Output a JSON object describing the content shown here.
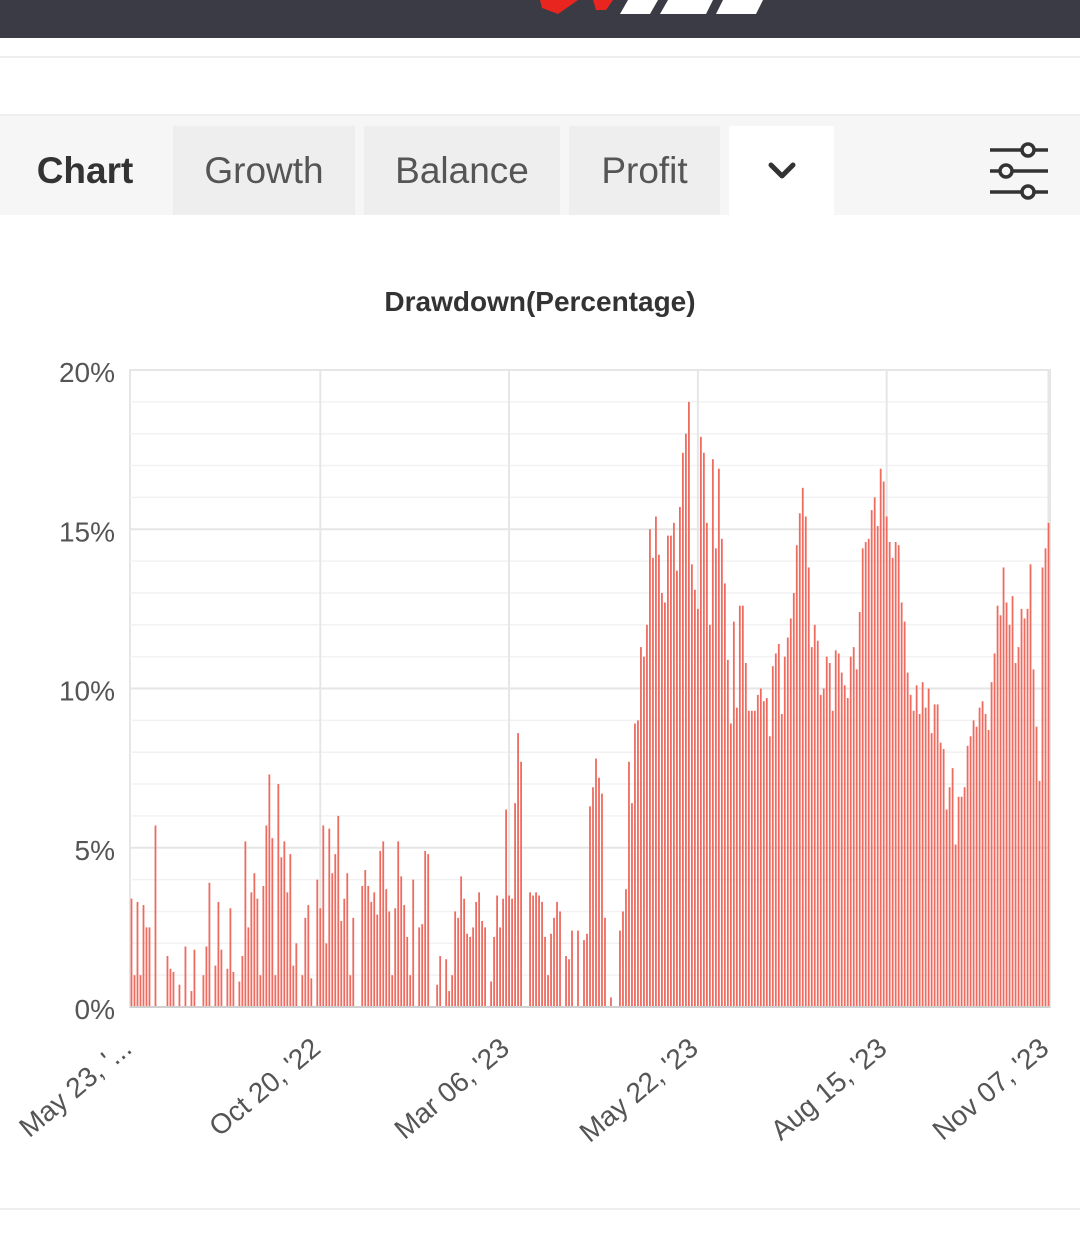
{
  "brand": {
    "color": "#3b3b46",
    "accent": "#e8251e"
  },
  "tabs": [
    {
      "label": "Chart"
    },
    {
      "label": "Growth"
    },
    {
      "label": "Balance"
    },
    {
      "label": "Profit"
    }
  ],
  "icons": {
    "more": "chevron-down-icon",
    "settings": "sliders-icon"
  },
  "chart_data": {
    "type": "bar",
    "title": "Drawdown(Percentage)",
    "ylim": [
      0,
      20
    ],
    "yticks": [
      "0%",
      "5%",
      "10%",
      "15%",
      "20%"
    ],
    "xticks": [
      "May 23, '...",
      "Oct 20, '22",
      "Mar 06, '23",
      "May 22, '23",
      "Aug 15, '23",
      "Nov 07, '23"
    ],
    "bar_color": "#ee6b60",
    "grid": true,
    "values": [
      3.4,
      1.0,
      3.3,
      1.0,
      3.2,
      2.5,
      2.5,
      0.0,
      5.7,
      0.0,
      0.0,
      0.0,
      1.6,
      1.2,
      1.1,
      0.0,
      0.7,
      0.0,
      1.9,
      0.0,
      0.5,
      1.8,
      0.0,
      0.0,
      1.0,
      1.9,
      3.9,
      0.0,
      1.3,
      3.3,
      1.8,
      0.0,
      1.2,
      3.1,
      1.1,
      0.0,
      0.8,
      1.6,
      5.2,
      2.5,
      3.6,
      4.2,
      3.4,
      1.0,
      3.8,
      5.7,
      7.3,
      5.3,
      1.0,
      7.0,
      4.7,
      5.2,
      3.6,
      4.8,
      1.3,
      2.0,
      0.0,
      1.0,
      2.8,
      3.2,
      0.9,
      0.0,
      4.0,
      3.1,
      5.7,
      2.0,
      5.6,
      4.2,
      4.8,
      6.0,
      2.7,
      3.4,
      4.2,
      1.0,
      2.8,
      0.0,
      0.0,
      3.8,
      4.3,
      3.8,
      3.3,
      3.6,
      2.9,
      4.9,
      5.2,
      3.7,
      3.0,
      1.0,
      3.1,
      5.2,
      4.1,
      3.2,
      2.2,
      1.0,
      4.0,
      0.0,
      2.5,
      2.6,
      4.9,
      4.8,
      0.0,
      0.0,
      0.7,
      1.6,
      0.0,
      1.5,
      0.5,
      1.0,
      3.0,
      2.8,
      4.1,
      3.4,
      2.3,
      2.2,
      2.5,
      3.3,
      3.6,
      2.7,
      2.5,
      0.0,
      0.8,
      2.2,
      3.5,
      2.5,
      3.4,
      6.2,
      3.5,
      3.4,
      6.4,
      8.6,
      7.7,
      0.0,
      0.0,
      3.6,
      3.5,
      3.6,
      3.5,
      3.3,
      2.2,
      1.0,
      2.3,
      2.8,
      3.3,
      3.0,
      0.0,
      1.6,
      1.5,
      2.4,
      0.0,
      2.4,
      0.0,
      2.1,
      2.3,
      6.3,
      6.9,
      7.8,
      7.2,
      6.7,
      2.8,
      0.0,
      0.3,
      0.0,
      0.0,
      2.4,
      3.0,
      3.7,
      7.7,
      6.4,
      8.9,
      9.0,
      11.3,
      11.0,
      12.0,
      15.0,
      14.1,
      15.4,
      14.2,
      13.0,
      12.7,
      14.8,
      14.8,
      15.2,
      13.7,
      15.7,
      17.4,
      18.0,
      19.0,
      13.9,
      13.1,
      12.5,
      17.9,
      17.4,
      15.2,
      12.0,
      17.2,
      14.4,
      16.9,
      14.7,
      13.3,
      10.9,
      8.9,
      12.1,
      9.4,
      12.6,
      12.6,
      10.8,
      9.3,
      9.3,
      9.3,
      9.8,
      10.0,
      9.6,
      9.7,
      8.5,
      10.7,
      11.1,
      11.4,
      9.2,
      11.0,
      11.6,
      12.2,
      13.0,
      14.5,
      15.5,
      16.3,
      15.4,
      13.8,
      11.3,
      12.0,
      11.5,
      9.8,
      10.0,
      11.0,
      10.8,
      9.3,
      11.2,
      11.1,
      10.5,
      10.1,
      9.7,
      11.0,
      11.3,
      10.6,
      12.4,
      14.4,
      14.6,
      14.7,
      15.6,
      16.0,
      15.1,
      16.9,
      16.5,
      15.4,
      14.6,
      14.1,
      14.6,
      14.5,
      12.7,
      12.1,
      10.5,
      9.8,
      9.3,
      10.1,
      9.2,
      10.2,
      9.4,
      10.0,
      8.6,
      9.5,
      9.5,
      8.3,
      8.1,
      6.2,
      6.9,
      7.5,
      5.1,
      6.6,
      6.6,
      6.9,
      8.2,
      8.5,
      9.0,
      8.8,
      9.4,
      9.6,
      9.2,
      8.7,
      10.2,
      11.1,
      12.6,
      12.3,
      13.8,
      12.7,
      12.0,
      12.9,
      10.8,
      11.3,
      12.5,
      12.2,
      12.5,
      13.9,
      10.6,
      8.8,
      7.1,
      13.8,
      14.4,
      15.2
    ]
  }
}
